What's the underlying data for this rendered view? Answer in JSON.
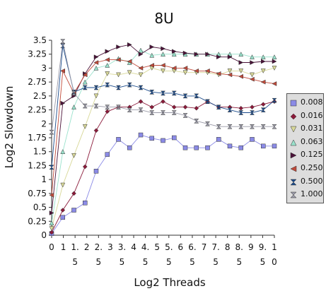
{
  "chart_data": {
    "type": "line",
    "title": "8U",
    "xlabel": "Log2 Threads",
    "ylabel": "Log2 Slowdown",
    "xlim": [
      0,
      10
    ],
    "ylim": [
      0,
      3.5
    ],
    "y_ticks": [
      "0",
      "0.25",
      "0.5",
      "0.75",
      "1",
      "1.25",
      "1.5",
      "1.75",
      "2",
      "2.25",
      "2.5",
      "2.75",
      "3",
      "3.25",
      "3.5"
    ],
    "x_ticks": [
      {
        "top": "0",
        "bottom": ""
      },
      {
        "top": "1",
        "bottom": ""
      },
      {
        "top": "1.",
        "bottom": "5"
      },
      {
        "top": "2",
        "bottom": ""
      },
      {
        "top": "2.",
        "bottom": "5"
      },
      {
        "top": "3",
        "bottom": ""
      },
      {
        "top": "3.",
        "bottom": "5"
      },
      {
        "top": "4",
        "bottom": ""
      },
      {
        "top": "4.",
        "bottom": "5"
      },
      {
        "top": "5",
        "bottom": ""
      },
      {
        "top": "5.",
        "bottom": "5"
      },
      {
        "top": "6",
        "bottom": ""
      },
      {
        "top": "6.",
        "bottom": "5"
      },
      {
        "top": "7",
        "bottom": ""
      },
      {
        "top": "7.",
        "bottom": "5"
      },
      {
        "top": "8",
        "bottom": ""
      },
      {
        "top": "8.",
        "bottom": "5"
      },
      {
        "top": "9",
        "bottom": ""
      },
      {
        "top": "9.",
        "bottom": "5"
      },
      {
        "top": "1",
        "bottom": "0"
      }
    ],
    "grid": false,
    "legend_position": "right",
    "x": [
      0,
      0.5,
      1,
      1.5,
      2,
      2.5,
      3,
      3.5,
      4,
      4.5,
      5,
      5.5,
      6,
      6.5,
      7,
      7.5,
      8,
      8.5,
      9,
      9.5,
      10
    ],
    "series": [
      {
        "name": "0.008",
        "marker": "square",
        "color": "#8a8ae6",
        "values": [
          0.03,
          0.32,
          0.45,
          0.58,
          1.15,
          1.45,
          1.72,
          1.57,
          1.8,
          1.74,
          1.7,
          1.75,
          1.57,
          1.57,
          1.57,
          1.72,
          1.6,
          1.57,
          1.72,
          1.6,
          1.6
        ]
      },
      {
        "name": "0.016",
        "marker": "diamond",
        "color": "#8b1a3a",
        "values": [
          0.05,
          0.45,
          0.75,
          1.23,
          1.88,
          2.22,
          2.3,
          2.3,
          2.4,
          2.3,
          2.4,
          2.3,
          2.3,
          2.28,
          2.4,
          2.3,
          2.3,
          2.28,
          2.3,
          2.35,
          2.4
        ]
      },
      {
        "name": "0.031",
        "marker": "triangle-down",
        "color": "#d8d898",
        "values": [
          0.12,
          0.9,
          1.43,
          1.95,
          2.5,
          2.9,
          2.88,
          2.92,
          2.88,
          3.0,
          2.95,
          2.95,
          2.92,
          2.92,
          2.92,
          2.88,
          2.95,
          2.95,
          2.88,
          2.95,
          3.0
        ]
      },
      {
        "name": "0.063",
        "marker": "triangle-up",
        "color": "#99e2cc",
        "values": [
          0.22,
          1.5,
          2.3,
          2.75,
          3.0,
          3.05,
          3.17,
          3.1,
          3.32,
          3.23,
          3.25,
          3.25,
          3.25,
          3.25,
          3.25,
          3.25,
          3.25,
          3.25,
          3.2,
          3.2,
          3.2
        ]
      },
      {
        "name": "0.125",
        "marker": "triangle-right",
        "color": "#4a1238",
        "values": [
          0.4,
          2.37,
          2.5,
          2.9,
          3.2,
          3.3,
          3.38,
          3.42,
          3.25,
          3.38,
          3.35,
          3.3,
          3.27,
          3.25,
          3.25,
          3.2,
          3.2,
          3.1,
          3.1,
          3.12,
          3.12
        ]
      },
      {
        "name": "0.250",
        "marker": "triangle-left",
        "color": "#c04a3a",
        "values": [
          0.72,
          2.95,
          2.55,
          2.88,
          3.1,
          3.15,
          3.15,
          3.12,
          3.0,
          3.05,
          3.05,
          3.0,
          3.0,
          2.95,
          2.95,
          2.9,
          2.88,
          2.85,
          2.8,
          2.75,
          2.72
        ]
      },
      {
        "name": "0.500",
        "marker": "bowtie",
        "color": "#1a4a8a",
        "values": [
          1.22,
          3.4,
          2.57,
          2.65,
          2.65,
          2.7,
          2.65,
          2.7,
          2.65,
          2.57,
          2.55,
          2.55,
          2.5,
          2.5,
          2.4,
          2.3,
          2.25,
          2.2,
          2.2,
          2.25,
          2.42
        ]
      },
      {
        "name": "1.000",
        "marker": "hourglass",
        "color": "#9a9aa8",
        "values": [
          1.85,
          3.48,
          2.55,
          2.32,
          2.32,
          2.3,
          2.3,
          2.25,
          2.25,
          2.2,
          2.2,
          2.2,
          2.15,
          2.05,
          2.0,
          1.95,
          1.95,
          1.95,
          1.95,
          1.95,
          1.95
        ]
      }
    ]
  }
}
